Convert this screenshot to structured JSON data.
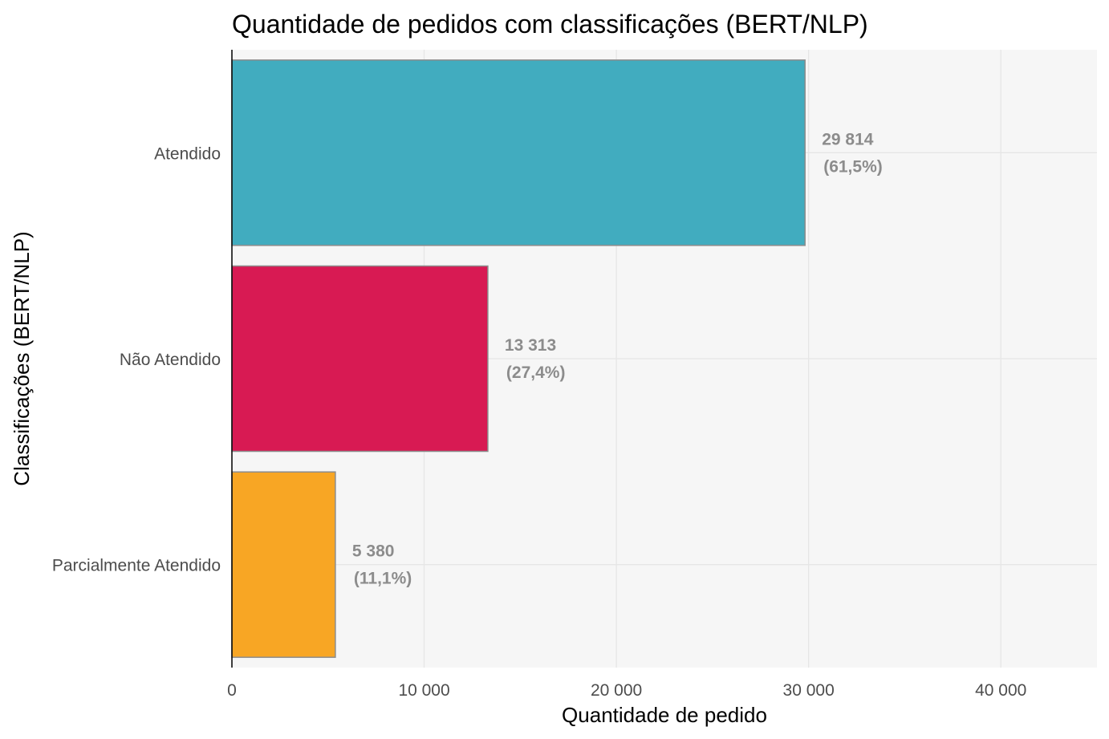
{
  "chart_data": {
    "type": "bar",
    "orientation": "horizontal",
    "title": "Quantidade de pedidos com classificações (BERT/NLP)",
    "xlabel": "Quantidade de pedido",
    "ylabel": "Classificações (BERT/NLP)",
    "xlim": [
      0,
      45000
    ],
    "x_ticks": [
      0,
      10000,
      20000,
      30000,
      40000
    ],
    "x_tick_labels": [
      "0",
      "10 000",
      "20 000",
      "30 000",
      "40 000"
    ],
    "grid": true,
    "legend": "none",
    "categories": [
      "Atendido",
      "Não Atendido",
      "Parcialmente Atendido"
    ],
    "values": [
      29814,
      13313,
      5380
    ],
    "labels_count": [
      "29 814",
      "13 313",
      "5 380"
    ],
    "labels_pct": [
      "(61,5%)",
      "(27,4%)",
      "(11,1%)"
    ],
    "colors": [
      "#41acbf",
      "#d81a53",
      "#f8a624"
    ],
    "bar_border_color": "#8c8c8c",
    "panel_background": "#f6f6f6",
    "grid_color": "#e6e6e6"
  }
}
